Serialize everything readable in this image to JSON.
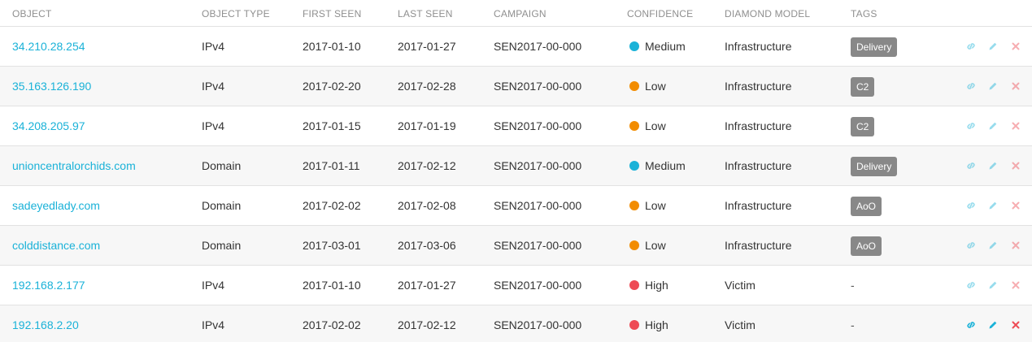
{
  "headers": {
    "object": "OBJECT",
    "object_type": "OBJECT TYPE",
    "first_seen": "FIRST SEEN",
    "last_seen": "LAST SEEN",
    "campaign": "CAMPAIGN",
    "confidence": "CONFIDENCE",
    "diamond_model": "DIAMOND MODEL",
    "tags": "TAGS"
  },
  "colors": {
    "link": "#1ab2d8",
    "medium": "#1ab2d8",
    "low": "#f28c00",
    "high": "#ee4b55",
    "edit": "#1ab2d8",
    "delete": "#ee4b55",
    "tag_bg": "#888888"
  },
  "rows": [
    {
      "object": "34.210.28.254",
      "type": "IPv4",
      "first_seen": "2017-01-10",
      "last_seen": "2017-01-27",
      "campaign": "SEN2017-00-000",
      "confidence": "Medium",
      "diamond": "Infrastructure",
      "tag": "Delivery"
    },
    {
      "object": "35.163.126.190",
      "type": "IPv4",
      "first_seen": "2017-02-20",
      "last_seen": "2017-02-28",
      "campaign": "SEN2017-00-000",
      "confidence": "Low",
      "diamond": "Infrastructure",
      "tag": "C2"
    },
    {
      "object": "34.208.205.97",
      "type": "IPv4",
      "first_seen": "2017-01-15",
      "last_seen": "2017-01-19",
      "campaign": "SEN2017-00-000",
      "confidence": "Low",
      "diamond": "Infrastructure",
      "tag": "C2"
    },
    {
      "object": "unioncentralorchids.com",
      "type": "Domain",
      "first_seen": "2017-01-11",
      "last_seen": "2017-02-12",
      "campaign": "SEN2017-00-000",
      "confidence": "Medium",
      "diamond": "Infrastructure",
      "tag": "Delivery"
    },
    {
      "object": "sadeyedlady.com",
      "type": "Domain",
      "first_seen": "2017-02-02",
      "last_seen": "2017-02-08",
      "campaign": "SEN2017-00-000",
      "confidence": "Low",
      "diamond": "Infrastructure",
      "tag": "AoO"
    },
    {
      "object": "colddistance.com",
      "type": "Domain",
      "first_seen": "2017-03-01",
      "last_seen": "2017-03-06",
      "campaign": "SEN2017-00-000",
      "confidence": "Low",
      "diamond": "Infrastructure",
      "tag": "AoO"
    },
    {
      "object": "192.168.2.177",
      "type": "IPv4",
      "first_seen": "2017-01-10",
      "last_seen": "2017-01-27",
      "campaign": "SEN2017-00-000",
      "confidence": "High",
      "diamond": "Victim",
      "tag": "-"
    },
    {
      "object": "192.168.2.20",
      "type": "IPv4",
      "first_seen": "2017-02-02",
      "last_seen": "2017-02-12",
      "campaign": "SEN2017-00-000",
      "confidence": "High",
      "diamond": "Victim",
      "tag": "-"
    }
  ]
}
